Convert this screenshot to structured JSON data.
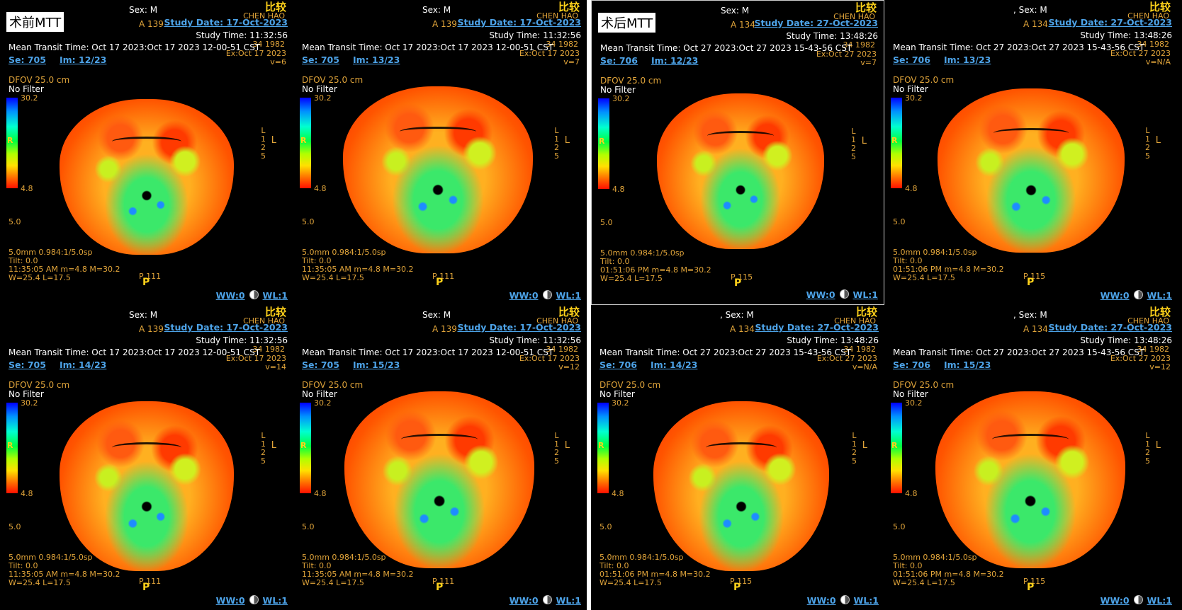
{
  "app": {
    "compare_label": "比较",
    "pre_label": "术前MTT",
    "post_label": "术后MTT"
  },
  "colorbar": {
    "max": "30.2",
    "min": "4.8",
    "r_label": "R"
  },
  "panels": [
    {
      "sex": "Sex: M",
      "a": "A 139",
      "name": "CHEN HAO",
      "dob": "34 1982",
      "ex": "Ex:Oct 17 2023",
      "v": "v=6",
      "study_date": "Study Date: 17-Oct-2023",
      "study_time": "Study Time: 11:32:56",
      "mean": "Mean Transit Time: Oct 17 2023:Oct 17 2023 12-00-51 CST",
      "se": "Se: 705",
      "im": "Im: 12/23",
      "dfov": "DFOV 25.0 cm",
      "filter": "No Filter",
      "lower": "5.0",
      "slice": "5.0mm 0.984:1/5.0sp",
      "tilt": "Tilt: 0.0",
      "time": "11:35:05 AM m=4.8 M=30.2",
      "wl_line": "W=25.4 L=17.5",
      "p": "P 111",
      "pp": "P",
      "ww": "WW:0",
      "wlv": "WL:1",
      "l1": "L",
      "l2": "1",
      "l3": "2",
      "l4": "5",
      "lbig": "L"
    },
    {
      "sex": "Sex: M",
      "a": "A 139",
      "name": "CHEN HAO",
      "dob": "34 1982",
      "ex": "Ex:Oct 17 2023",
      "v": "v=7",
      "study_date": "Study Date: 17-Oct-2023",
      "study_time": "Study Time: 11:32:56",
      "mean": "Mean Transit Time: Oct 17 2023:Oct 17 2023 12-00-51 CST",
      "se": "Se: 705",
      "im": "Im: 13/23",
      "dfov": "DFOV 25.0 cm",
      "filter": "No Filter",
      "lower": "5.0",
      "slice": "5.0mm 0.984:1/5.0sp",
      "tilt": "Tilt: 0.0",
      "time": "11:35:05 AM m=4.8 M=30.2",
      "wl_line": "W=25.4 L=17.5",
      "p": "P 111",
      "pp": "P",
      "ww": "WW:0",
      "wlv": "WL:1",
      "l1": "L",
      "l2": "1",
      "l3": "2",
      "l4": "5",
      "lbig": "L"
    },
    {
      "sex": "Sex: M",
      "a": "A 134",
      "name": "CHEN HAO",
      "dob": "34 1982",
      "ex": "Ex:Oct 27 2023",
      "v": "v=7",
      "study_date": "Study Date: 27-Oct-2023",
      "study_time": "Study Time: 13:48:26",
      "mean": "Mean Transit Time: Oct 27 2023:Oct 27 2023 15-43-56 CST",
      "se": "Se: 706",
      "im": "Im: 12/23",
      "dfov": "DFOV 25.0 cm",
      "filter": "No Filter",
      "lower": "5.0",
      "slice": "5.0mm 0.984:1/5.0sp",
      "tilt": "Tilt: 0.0",
      "time": "01:51:06 PM m=4.8 M=30.2",
      "wl_line": "W=25.4 L=17.5",
      "p": "P 115",
      "pp": "P",
      "ww": "WW:0",
      "wlv": "WL:1",
      "l1": "L",
      "l2": "1",
      "l3": "2",
      "l4": "5",
      "lbig": "L"
    },
    {
      "sex": ", Sex: M",
      "a": "A 134",
      "name": "CHEN HAO",
      "dob": "34 1982",
      "ex": "Ex:Oct 27 2023",
      "v": "v=N/A",
      "study_date": "Study Date: 27-Oct-2023",
      "study_time": "Study Time: 13:48:26",
      "mean": "Mean Transit Time: Oct 27 2023:Oct 27 2023 15-43-56 CST",
      "se": "Se: 706",
      "im": "Im: 13/23",
      "dfov": "DFOV 25.0 cm",
      "filter": "No Filter",
      "lower": "5.0",
      "slice": "5.0mm 0.984:1/5.0sp",
      "tilt": "Tilt: 0.0",
      "time": "01:51:06 PM m=4.8 M=30.2",
      "wl_line": "W=25.4 L=17.5",
      "p": "P 115",
      "pp": "P",
      "ww": "WW:0",
      "wlv": "WL:1",
      "l1": "L",
      "l2": "1",
      "l3": "2",
      "l4": "5",
      "lbig": "L"
    },
    {
      "sex": "Sex: M",
      "a": "A 139",
      "name": "CHEN HAO",
      "dob": "34 1982",
      "ex": "Ex:Oct 17 2023",
      "v": "v=14",
      "study_date": "Study Date: 17-Oct-2023",
      "study_time": "Study Time: 11:32:56",
      "mean": "Mean Transit Time: Oct 17 2023:Oct 17 2023 12-00-51 CST",
      "se": "Se: 705",
      "im": "Im: 14/23",
      "dfov": "DFOV 25.0 cm",
      "filter": "No Filter",
      "lower": "5.0",
      "slice": "5.0mm 0.984:1/5.0sp",
      "tilt": "Tilt: 0.0",
      "time": "11:35:05 AM m=4.8 M=30.2",
      "wl_line": "W=25.4 L=17.5",
      "p": "P 111",
      "pp": "P",
      "ww": "WW:0",
      "wlv": "WL:1",
      "l1": "L",
      "l2": "1",
      "l3": "2",
      "l4": "5",
      "lbig": "L"
    },
    {
      "sex": "Sex: M",
      "a": "A 139",
      "name": "CHEN HAO",
      "dob": "34 1982",
      "ex": "Ex:Oct 17 2023",
      "v": "v=12",
      "study_date": "Study Date: 17-Oct-2023",
      "study_time": "Study Time: 11:32:56",
      "mean": "Mean Transit Time: Oct 17 2023:Oct 17 2023 12-00-51 CST",
      "se": "Se: 705",
      "im": "Im: 15/23",
      "dfov": "DFOV 25.0 cm",
      "filter": "No Filter",
      "lower": "5.0",
      "slice": "5.0mm 0.984:1/5.0sp",
      "tilt": "Tilt: 0.0",
      "time": "11:35:05 AM m=4.8 M=30.2",
      "wl_line": "W=25.4 L=17.5",
      "p": "P 111",
      "pp": "P",
      "ww": "WW:0",
      "wlv": "WL:1",
      "l1": "L",
      "l2": "1",
      "l3": "2",
      "l4": "5",
      "lbig": "L"
    },
    {
      "sex": ", Sex: M",
      "a": "A 134",
      "name": "CHEN HAO",
      "dob": "34 1982",
      "ex": "Ex:Oct 27 2023",
      "v": "v=N/A",
      "study_date": "Study Date: 27-Oct-2023",
      "study_time": "Study Time: 13:48:26",
      "mean": "Mean Transit Time: Oct 27 2023:Oct 27 2023 15-43-56 CST",
      "se": "Se: 706",
      "im": "Im: 14/23",
      "dfov": "DFOV 25.0 cm",
      "filter": "No Filter",
      "lower": "5.0",
      "slice": "5.0mm 0.984:1/5.0sp",
      "tilt": "Tilt: 0.0",
      "time": "01:51:06 PM m=4.8 M=30.2",
      "wl_line": "W=25.4 L=17.5",
      "p": "P 115",
      "pp": "P",
      "ww": "WW:0",
      "wlv": "WL:1",
      "l1": "L",
      "l2": "1",
      "l3": "2",
      "l4": "5",
      "lbig": "L"
    },
    {
      "sex": ", Sex: M",
      "a": "A 134",
      "name": "CHEN HAO",
      "dob": "34 1982",
      "ex": "Ex:Oct 27 2023",
      "v": "v=12",
      "study_date": "Study Date: 27-Oct-2023",
      "study_time": "Study Time: 13:48:26",
      "mean": "Mean Transit Time: Oct 27 2023:Oct 27 2023 15-43-56 CST",
      "se": "Se: 706",
      "im": "Im: 15/23",
      "dfov": "DFOV 25.0 cm",
      "filter": "No Filter",
      "lower": "5.0",
      "slice": "5.0mm 0.984:1/5.0sp",
      "tilt": "Tilt: 0.0",
      "time": "01:51:06 PM m=4.8 M=30.2",
      "wl_line": "W=25.4 L=17.5",
      "p": "P 115",
      "pp": "P",
      "ww": "WW:0",
      "wlv": "WL:1",
      "l1": "L",
      "l2": "1",
      "l3": "2",
      "l4": "5",
      "lbig": "L"
    }
  ]
}
